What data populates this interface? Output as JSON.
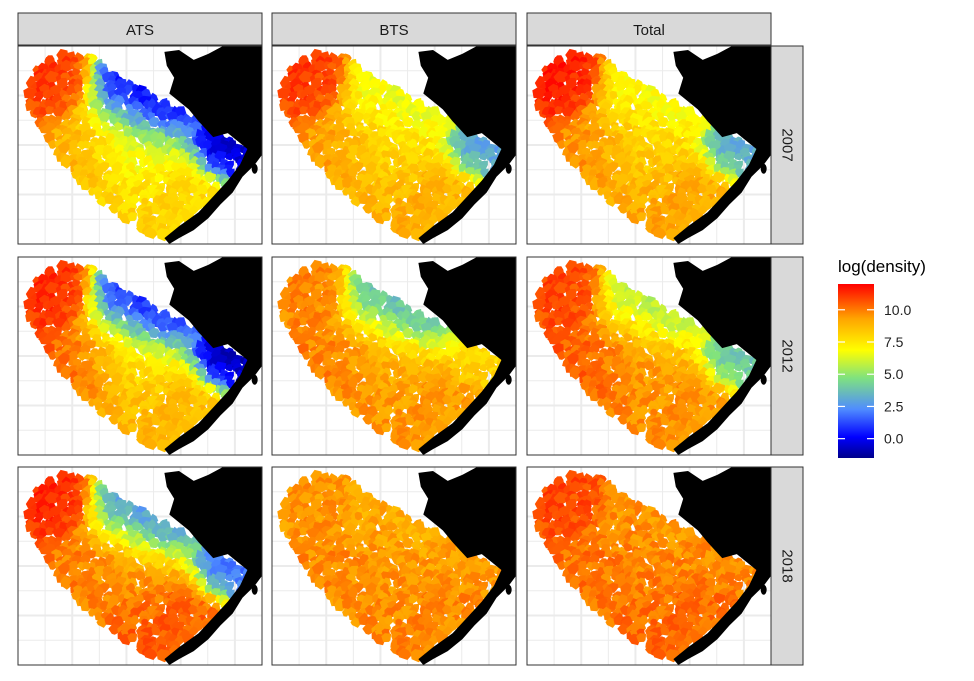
{
  "chart_data": {
    "type": "heatmap",
    "title": "",
    "facet_columns": [
      "ATS",
      "BTS",
      "Total"
    ],
    "facet_rows": [
      "2007",
      "2012",
      "2018"
    ],
    "legend": {
      "title": "log(density)",
      "placement": "right",
      "ticks": [
        "0.0",
        "2.5",
        "5.0",
        "7.5",
        "10.0"
      ],
      "tick_values": [
        0.0,
        2.5,
        5.0,
        7.5,
        10.0
      ],
      "range": [
        -1.5,
        12.0
      ],
      "colors": [
        "#00008B",
        "#0000FF",
        "#4F8CFF",
        "#7FE27F",
        "#FFFF00",
        "#FFA500",
        "#FF0000"
      ]
    },
    "grid": true,
    "panels": [
      {
        "method": "ATS",
        "year": "2007",
        "nw": 11.0,
        "wmid": 9.2,
        "mid": 6.5,
        "ne": 0.0,
        "se": 8.0,
        "e": -0.5
      },
      {
        "method": "BTS",
        "year": "2007",
        "nw": 11.0,
        "wmid": 9.5,
        "mid": 7.8,
        "ne": 6.5,
        "se": 9.0,
        "e": 3.0
      },
      {
        "method": "Total",
        "year": "2007",
        "nw": 11.5,
        "wmid": 9.8,
        "mid": 8.0,
        "ne": 6.8,
        "se": 9.2,
        "e": 3.2
      },
      {
        "method": "ATS",
        "year": "2012",
        "nw": 11.2,
        "wmid": 10.5,
        "mid": 7.5,
        "ne": 0.5,
        "se": 8.8,
        "e": -0.8
      },
      {
        "method": "BTS",
        "year": "2012",
        "nw": 9.8,
        "wmid": 10.0,
        "mid": 9.0,
        "ne": 3.5,
        "se": 9.5,
        "e": 8.0
      },
      {
        "method": "Total",
        "year": "2012",
        "nw": 10.8,
        "wmid": 10.6,
        "mid": 9.3,
        "ne": 5.5,
        "se": 9.6,
        "e": 4.0
      },
      {
        "method": "ATS",
        "year": "2018",
        "nw": 11.3,
        "wmid": 10.0,
        "mid": 9.5,
        "ne": 2.5,
        "se": 10.5,
        "e": 2.0
      },
      {
        "method": "BTS",
        "year": "2018",
        "nw": 9.5,
        "wmid": 9.8,
        "mid": 9.5,
        "ne": 9.0,
        "se": 9.8,
        "e": 9.5
      },
      {
        "method": "Total",
        "year": "2018",
        "nw": 10.8,
        "wmid": 10.2,
        "mid": 9.8,
        "ne": 9.5,
        "se": 10.3,
        "e": 9.8
      }
    ],
    "colors": {
      "panel_border": "#333333",
      "strip_fill": "#d9d9d9",
      "grid": "#ebebeb",
      "land": "#000000"
    }
  }
}
